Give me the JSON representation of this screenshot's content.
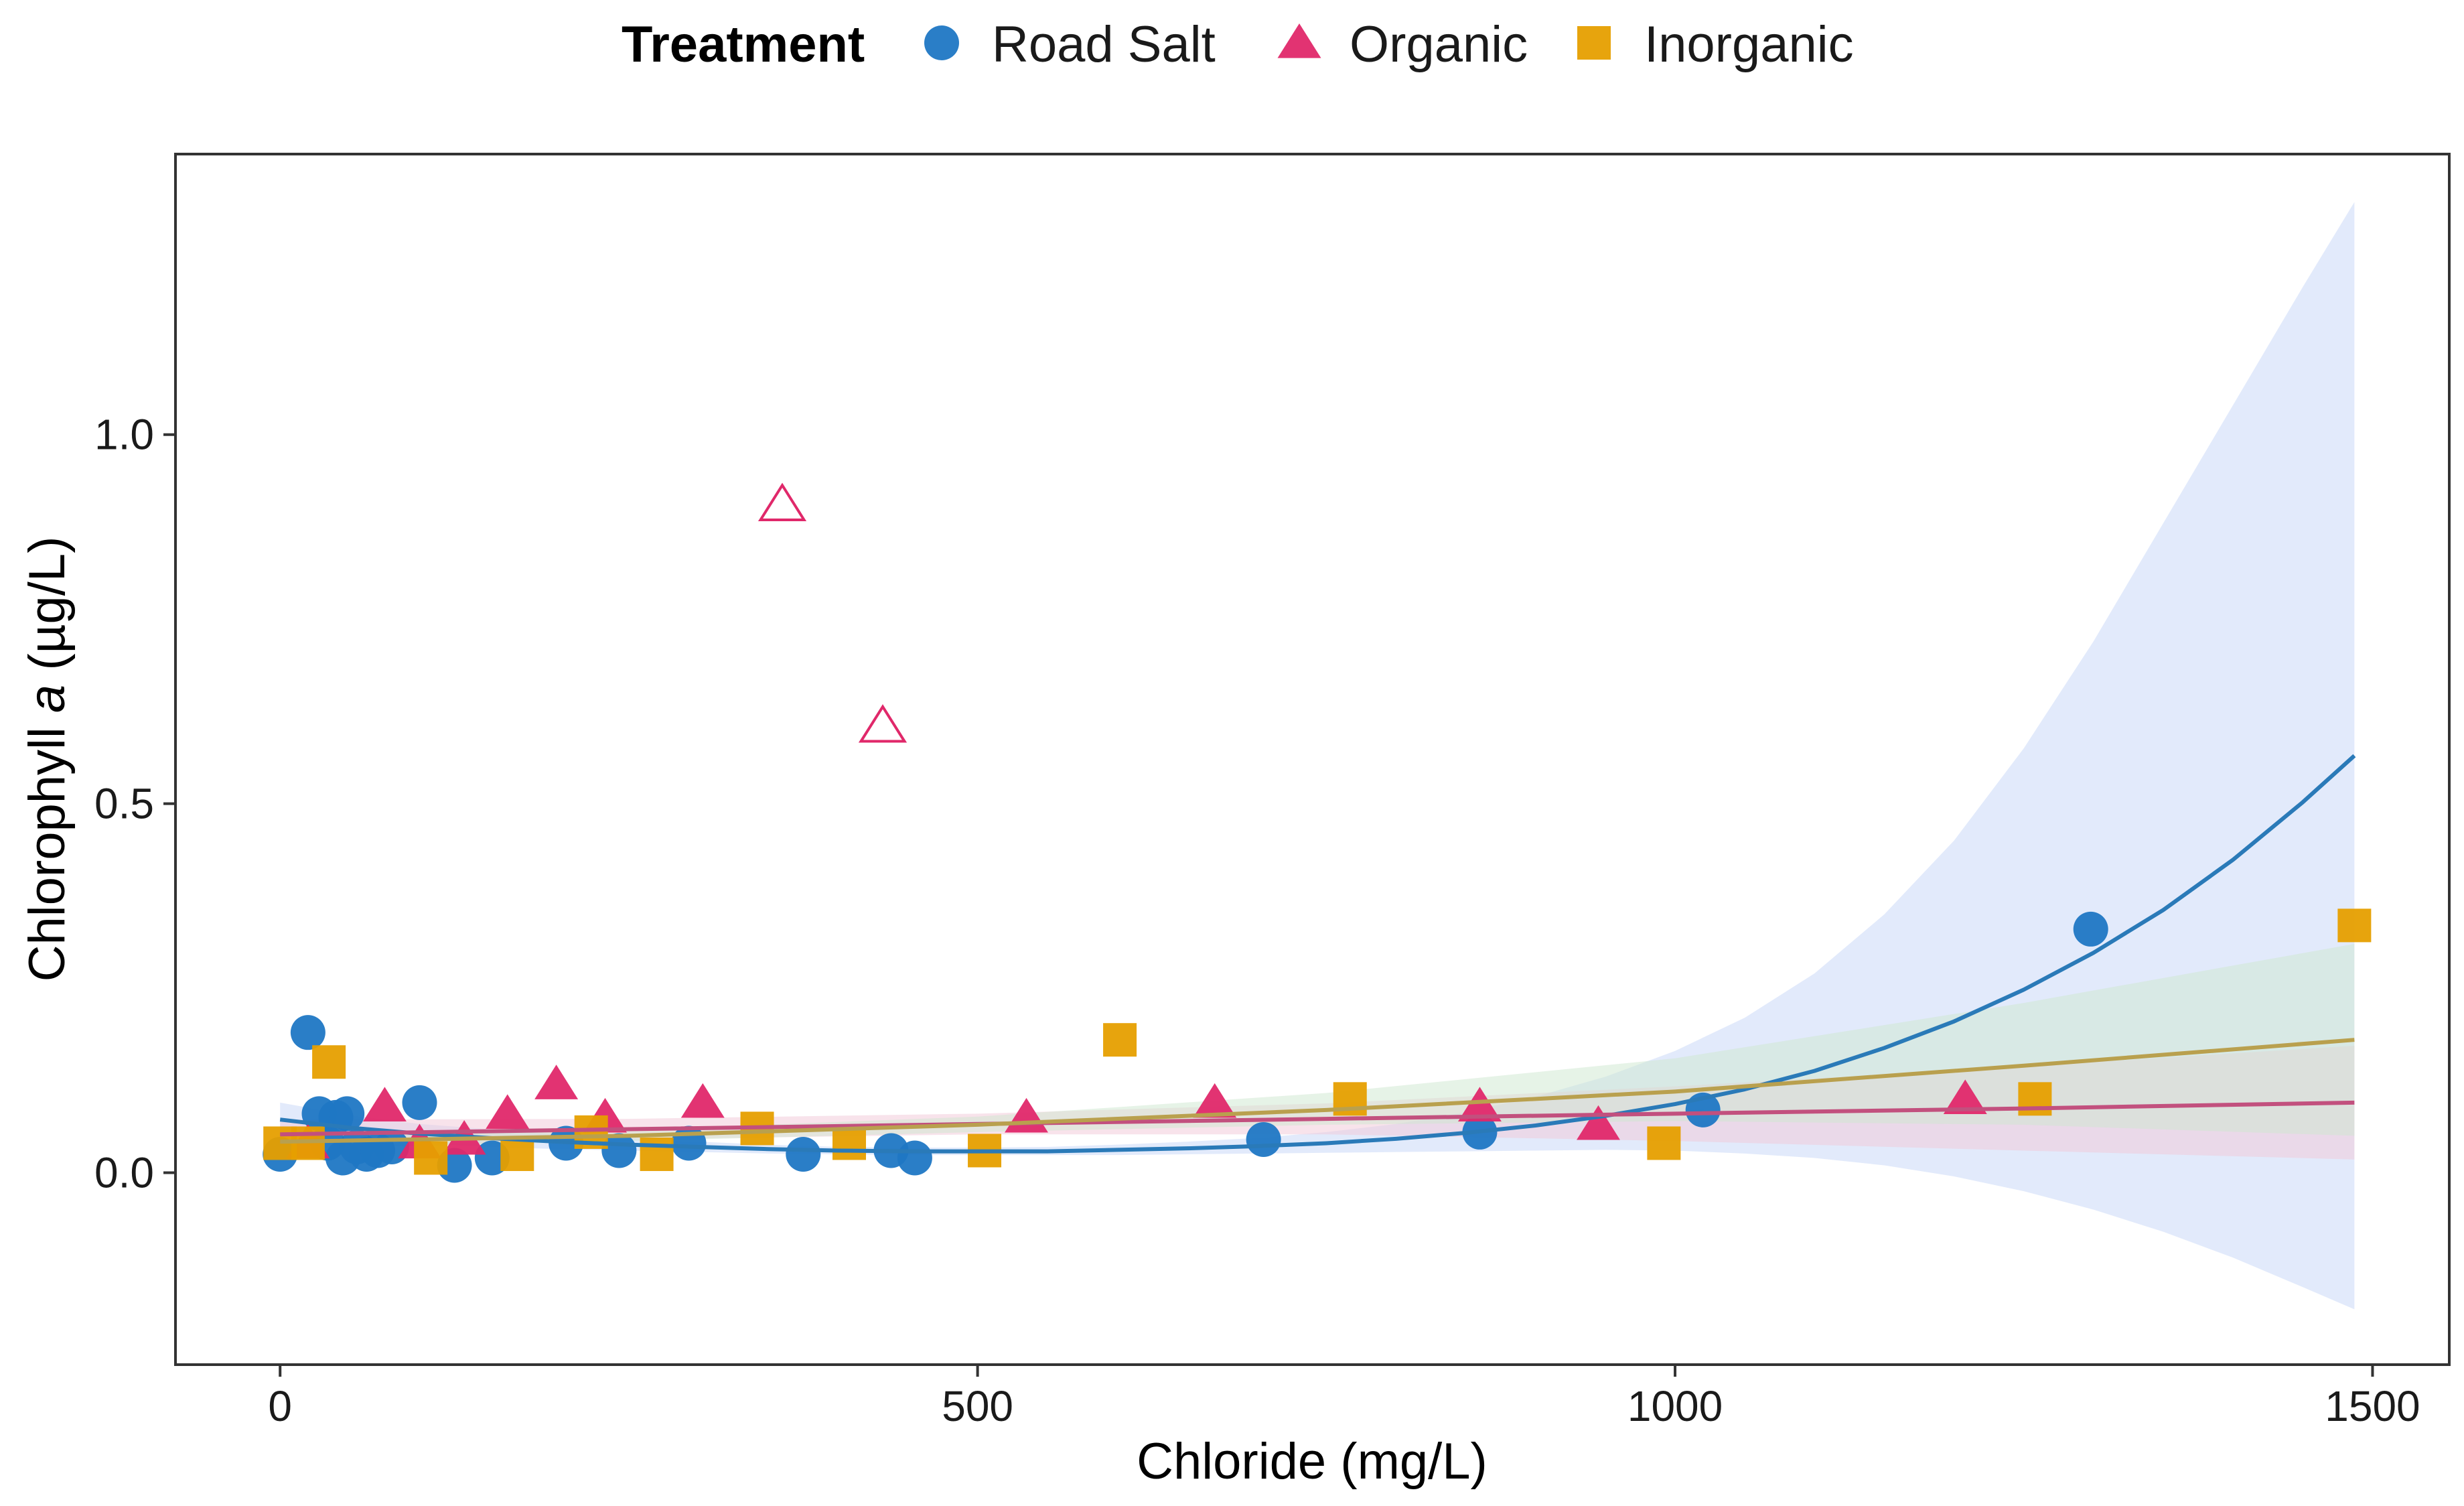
{
  "chart_data": {
    "type": "scatter",
    "title": "",
    "xlabel": "Chloride (mg/L)",
    "ylabel_prefix": "Chlorophyll ",
    "ylabel_italic": "a",
    "ylabel_suffix": " (µg/L)",
    "xlim": [
      -75,
      1555
    ],
    "ylim": [
      -0.26,
      1.38
    ],
    "x_ticks": [
      0,
      500,
      1000,
      1500
    ],
    "x_tick_labels": [
      "0",
      "500",
      "1000",
      "1500"
    ],
    "y_ticks": [
      0.0,
      0.5,
      1.0
    ],
    "y_tick_labels": [
      "0.0",
      "0.5",
      "1.0"
    ],
    "grid": false,
    "legend": {
      "title": "Treatment",
      "position": "top",
      "entries": [
        {
          "label": "Road Salt",
          "shape": "circle",
          "color": "#1f77c4"
        },
        {
          "label": "Organic",
          "shape": "triangle",
          "color": "#e0286a"
        },
        {
          "label": "Inorganic",
          "shape": "square",
          "color": "#e69f00"
        }
      ]
    },
    "series": [
      {
        "name": "Road Salt",
        "shape": "circle",
        "color": "#1f77c4",
        "line_color": "#2a7ab8",
        "band_color": "#c6d6f7",
        "points": [
          {
            "x": 0,
            "y": 0.025
          },
          {
            "x": 20,
            "y": 0.19
          },
          {
            "x": 28,
            "y": 0.08
          },
          {
            "x": 34,
            "y": 0.04
          },
          {
            "x": 40,
            "y": 0.075
          },
          {
            "x": 45,
            "y": 0.02
          },
          {
            "x": 48,
            "y": 0.08
          },
          {
            "x": 55,
            "y": 0.035
          },
          {
            "x": 62,
            "y": 0.025
          },
          {
            "x": 70,
            "y": 0.03
          },
          {
            "x": 80,
            "y": 0.035
          },
          {
            "x": 100,
            "y": 0.095
          },
          {
            "x": 125,
            "y": 0.01
          },
          {
            "x": 152,
            "y": 0.02
          },
          {
            "x": 205,
            "y": 0.04
          },
          {
            "x": 243,
            "y": 0.03
          },
          {
            "x": 293,
            "y": 0.04
          },
          {
            "x": 375,
            "y": 0.025
          },
          {
            "x": 438,
            "y": 0.03
          },
          {
            "x": 455,
            "y": 0.02
          },
          {
            "x": 705,
            "y": 0.045
          },
          {
            "x": 860,
            "y": 0.055
          },
          {
            "x": 1020,
            "y": 0.085
          },
          {
            "x": 1298,
            "y": 0.33
          }
        ],
        "fit": {
          "x": [
            0,
            50,
            100,
            150,
            200,
            250,
            300,
            350,
            400,
            450,
            500,
            550,
            600,
            650,
            700,
            750,
            800,
            850,
            900,
            950,
            1000,
            1050,
            1100,
            1150,
            1200,
            1250,
            1300,
            1350,
            1400,
            1450,
            1487
          ],
          "y": [
            0.072,
            0.061,
            0.053,
            0.047,
            0.042,
            0.038,
            0.035,
            0.032,
            0.03,
            0.029,
            0.029,
            0.029,
            0.031,
            0.033,
            0.036,
            0.04,
            0.046,
            0.054,
            0.064,
            0.077,
            0.093,
            0.113,
            0.138,
            0.169,
            0.205,
            0.248,
            0.298,
            0.356,
            0.424,
            0.502,
            0.565
          ],
          "lower": [
            0.05,
            0.045,
            0.04,
            0.035,
            0.032,
            0.03,
            0.028,
            0.026,
            0.025,
            0.024,
            0.024,
            0.024,
            0.024,
            0.025,
            0.026,
            0.027,
            0.028,
            0.029,
            0.03,
            0.031,
            0.03,
            0.026,
            0.02,
            0.01,
            -0.005,
            -0.025,
            -0.05,
            -0.08,
            -0.115,
            -0.155,
            -0.185
          ],
          "upper": [
            0.095,
            0.078,
            0.066,
            0.059,
            0.052,
            0.046,
            0.042,
            0.038,
            0.035,
            0.034,
            0.034,
            0.035,
            0.038,
            0.042,
            0.047,
            0.055,
            0.066,
            0.082,
            0.103,
            0.13,
            0.165,
            0.21,
            0.27,
            0.35,
            0.45,
            0.575,
            0.72,
            0.88,
            1.04,
            1.2,
            1.315
          ]
        }
      },
      {
        "name": "Organic",
        "shape": "triangle",
        "color": "#e0286a",
        "line_color": "#c2507e",
        "band_color": "#f2c8d8",
        "points": [
          {
            "x": 20,
            "y": 0.04
          },
          {
            "x": 75,
            "y": 0.09
          },
          {
            "x": 100,
            "y": 0.04
          },
          {
            "x": 132,
            "y": 0.045
          },
          {
            "x": 163,
            "y": 0.08
          },
          {
            "x": 198,
            "y": 0.12
          },
          {
            "x": 233,
            "y": 0.075
          },
          {
            "x": 303,
            "y": 0.095
          },
          {
            "x": 535,
            "y": 0.075
          },
          {
            "x": 670,
            "y": 0.095
          },
          {
            "x": 860,
            "y": 0.09
          },
          {
            "x": 945,
            "y": 0.065
          },
          {
            "x": 1208,
            "y": 0.1
          }
        ],
        "outliers": [
          {
            "x": 360,
            "y": 0.905
          },
          {
            "x": 432,
            "y": 0.605
          }
        ],
        "fit": {
          "x": [
            0,
            250,
            500,
            750,
            1000,
            1250,
            1487
          ],
          "y": [
            0.052,
            0.059,
            0.066,
            0.073,
            0.08,
            0.087,
            0.095
          ],
          "lower": [
            0.032,
            0.045,
            0.052,
            0.052,
            0.043,
            0.03,
            0.018
          ],
          "upper": [
            0.072,
            0.073,
            0.08,
            0.094,
            0.117,
            0.144,
            0.172
          ]
        }
      },
      {
        "name": "Inorganic",
        "shape": "square",
        "color": "#e69f00",
        "line_color": "#b9a04e",
        "band_color": "#cde8d0",
        "points": [
          {
            "x": 0,
            "y": 0.04
          },
          {
            "x": 20,
            "y": 0.04
          },
          {
            "x": 35,
            "y": 0.15
          },
          {
            "x": 108,
            "y": 0.02
          },
          {
            "x": 170,
            "y": 0.025
          },
          {
            "x": 223,
            "y": 0.055
          },
          {
            "x": 270,
            "y": 0.025
          },
          {
            "x": 342,
            "y": 0.06
          },
          {
            "x": 408,
            "y": 0.04
          },
          {
            "x": 505,
            "y": 0.03
          },
          {
            "x": 602,
            "y": 0.18
          },
          {
            "x": 767,
            "y": 0.1
          },
          {
            "x": 992,
            "y": 0.04
          },
          {
            "x": 1258,
            "y": 0.1
          },
          {
            "x": 1487,
            "y": 0.335
          }
        ],
        "fit": {
          "x": [
            0,
            250,
            500,
            750,
            1000,
            1250,
            1487
          ],
          "y": [
            0.042,
            0.05,
            0.065,
            0.085,
            0.11,
            0.145,
            0.18
          ],
          "lower": [
            0.032,
            0.043,
            0.055,
            0.065,
            0.07,
            0.065,
            0.05
          ],
          "upper": [
            0.055,
            0.058,
            0.076,
            0.108,
            0.155,
            0.23,
            0.31
          ]
        }
      }
    ]
  }
}
